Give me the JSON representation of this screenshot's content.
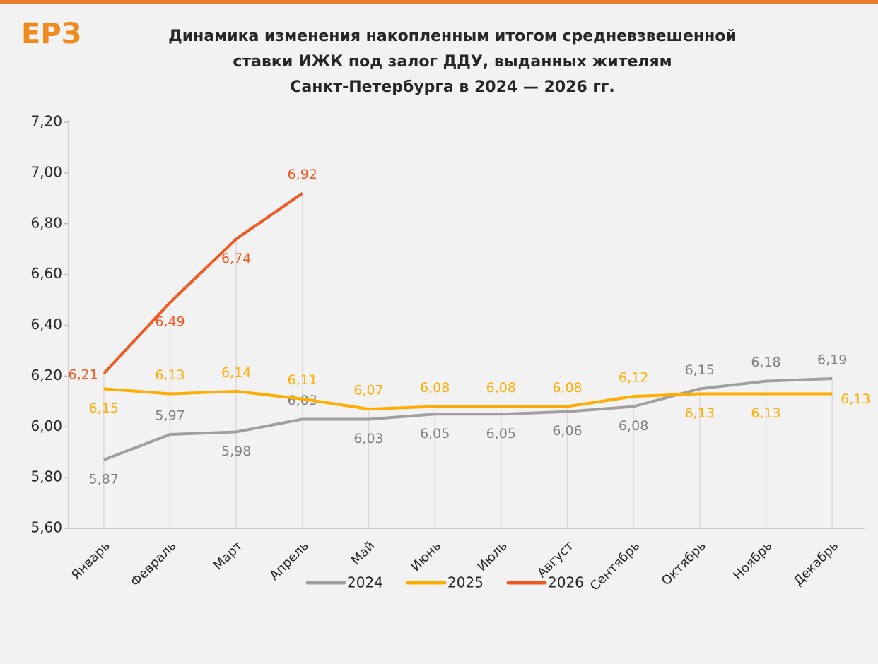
{
  "chart_data": {
    "type": "line",
    "logo": "ЕРЗ",
    "title": [
      "Динамика изменения накопленным итогом средневзвешенной",
      "ставки ИЖК под залог ДДУ, выданных жителям",
      "Санкт-Петербурга  в 2024  — 2026 гг."
    ],
    "categories": [
      "Январь",
      "Февраль",
      "Март",
      "Апрель",
      "Май",
      "Июнь",
      "Июль",
      "Август",
      "Сентябрь",
      "Октябрь",
      "Ноябрь",
      "Декабрь"
    ],
    "series": [
      {
        "name": "2024",
        "color": "#a0a0a0",
        "values": [
          5.87,
          5.97,
          5.98,
          6.03,
          6.03,
          6.05,
          6.05,
          6.06,
          6.08,
          6.15,
          6.18,
          6.19
        ],
        "value_labels": [
          "5,87",
          "5,97",
          "5,98",
          "6,03",
          "6,03",
          "6,05",
          "6,05",
          "6,06",
          "6,08",
          "6,15",
          "6,18",
          "6,19"
        ]
      },
      {
        "name": "2025",
        "color": "#ffad00",
        "values": [
          6.15,
          6.13,
          6.14,
          6.11,
          6.07,
          6.08,
          6.08,
          6.08,
          6.12,
          6.13,
          6.13,
          6.13
        ],
        "value_labels": [
          "6,15",
          "6,13",
          "6,14",
          "6,11",
          "6,07",
          "6,08",
          "6,08",
          "6,08",
          "6,12",
          "6,13",
          "6,13",
          "6,13"
        ]
      },
      {
        "name": "2026",
        "color": "#ef5a24",
        "values": [
          6.21,
          6.49,
          6.74,
          6.92,
          null,
          null,
          null,
          null,
          null,
          null,
          null,
          null
        ],
        "value_labels": [
          "6,21",
          "6,49",
          "6,74",
          "6,92",
          null,
          null,
          null,
          null,
          null,
          null,
          null,
          null
        ]
      }
    ],
    "ylim": [
      5.6,
      7.2
    ],
    "yticks": [
      {
        "value": 5.6,
        "label": "5,60"
      },
      {
        "value": 5.8,
        "label": "5,80"
      },
      {
        "value": 6.0,
        "label": "6,00"
      },
      {
        "value": 6.2,
        "label": "6,20"
      },
      {
        "value": 6.4,
        "label": "6,40"
      },
      {
        "value": 6.6,
        "label": "6,60"
      },
      {
        "value": 6.8,
        "label": "6,80"
      },
      {
        "value": 7.0,
        "label": "7,00"
      },
      {
        "value": 7.2,
        "label": "7,20"
      }
    ],
    "legend": "bottom"
  }
}
